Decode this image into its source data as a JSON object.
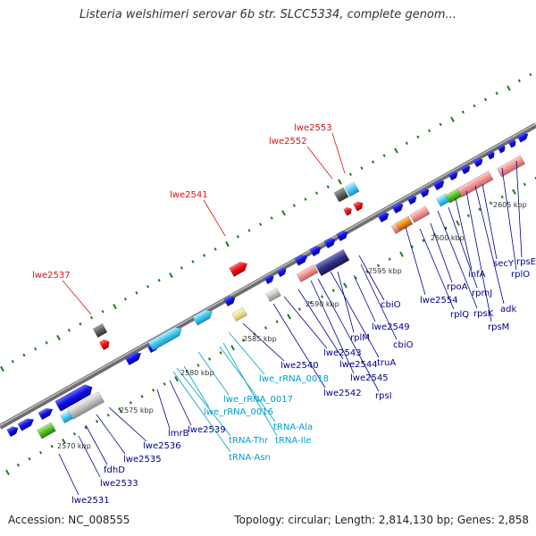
{
  "title": "Listeria welshimeri serovar 6b str. SLCC5334, complete genom...",
  "footer": {
    "accession": "Accession: NC_008555",
    "topology": "Topology: circular; Length: 2,814,130 bp; Genes: 2,858"
  },
  "colors": {
    "backbone": "#8c8c8c",
    "forward_tick": "#1e7a1e",
    "reverse_tick": "#1e7a1e",
    "gene_label": "#00008b",
    "rna_label": "#00a0c8",
    "pseudo_label": "#e01010"
  },
  "kbp_marks": [
    "2570 kbp",
    "2575 kbp",
    "2580 kbp",
    "2585 kbp",
    "2590 kbp",
    "2595 kbp",
    "2600 kbp",
    "2605 kbp"
  ],
  "labels": [
    {
      "text": "lwe2537",
      "kind": "pseudo"
    },
    {
      "text": "lwe2541",
      "kind": "pseudo"
    },
    {
      "text": "lwe2552",
      "kind": "pseudo"
    },
    {
      "text": "lwe2553",
      "kind": "pseudo"
    },
    {
      "text": "lwe2531",
      "kind": "gene"
    },
    {
      "text": "lwe2533",
      "kind": "gene"
    },
    {
      "text": "fdhD",
      "kind": "gene"
    },
    {
      "text": "lwe2535",
      "kind": "gene"
    },
    {
      "text": "lwe2536",
      "kind": "gene"
    },
    {
      "text": "lmrB",
      "kind": "gene"
    },
    {
      "text": "lwe2539",
      "kind": "gene"
    },
    {
      "text": "tRNA-Thr",
      "kind": "rna"
    },
    {
      "text": "tRNA-Asn",
      "kind": "rna"
    },
    {
      "text": "lwe_rRNA_0016",
      "kind": "rna"
    },
    {
      "text": "lwe_rRNA_0017",
      "kind": "rna"
    },
    {
      "text": "tRNA-Ala",
      "kind": "rna"
    },
    {
      "text": "tRNA-Ile",
      "kind": "rna"
    },
    {
      "text": "lwe_rRNA_0018",
      "kind": "rna"
    },
    {
      "text": "lwe2540",
      "kind": "gene"
    },
    {
      "text": "lwe2542",
      "kind": "gene"
    },
    {
      "text": "lwe2543",
      "kind": "gene"
    },
    {
      "text": "lwe2544",
      "kind": "gene"
    },
    {
      "text": "lwe2545",
      "kind": "gene"
    },
    {
      "text": "rpsI",
      "kind": "gene"
    },
    {
      "text": "truA",
      "kind": "gene"
    },
    {
      "text": "rplM",
      "kind": "gene"
    },
    {
      "text": "lwe2549",
      "kind": "gene"
    },
    {
      "text": "cbiO",
      "kind": "gene"
    },
    {
      "text": "cbiO",
      "kind": "gene"
    },
    {
      "text": "lwe2554",
      "kind": "gene"
    },
    {
      "text": "rplQ",
      "kind": "gene"
    },
    {
      "text": "rpoA",
      "kind": "gene"
    },
    {
      "text": "rpsK",
      "kind": "gene"
    },
    {
      "text": "rpmJ",
      "kind": "gene"
    },
    {
      "text": "infA",
      "kind": "gene"
    },
    {
      "text": "rpsM",
      "kind": "gene"
    },
    {
      "text": "adk",
      "kind": "gene"
    },
    {
      "text": "secY",
      "kind": "gene"
    },
    {
      "text": "rplO",
      "kind": "gene"
    },
    {
      "text": "rpsE",
      "kind": "gene"
    }
  ]
}
